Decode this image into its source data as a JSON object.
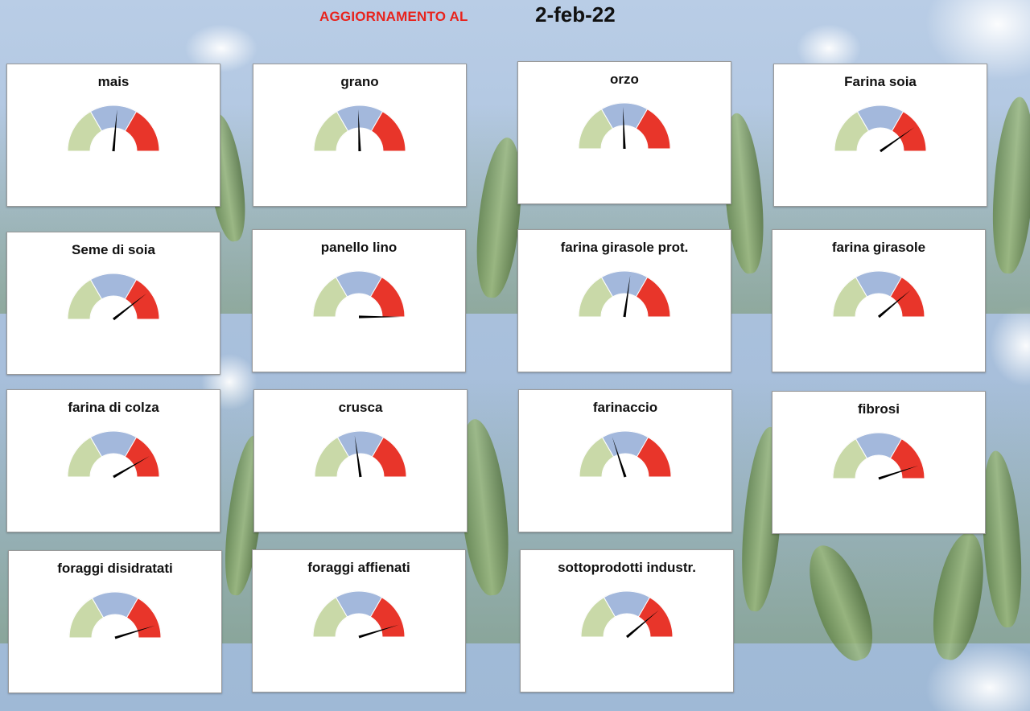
{
  "header": {
    "label": "AGGIORNAMENTO AL",
    "date": "2-feb-22"
  },
  "colors": {
    "header_label": "#e8231d",
    "zone_low": "#c9d9a8",
    "zone_mid": "#a3b8dc",
    "zone_high": "#e8352a",
    "lower_half": "#ffffff",
    "needle": "#000000"
  },
  "chart_data": {
    "type": "gauge",
    "gauge_range": [
      0,
      180
    ],
    "zones": [
      {
        "name": "",
        "from": 0,
        "to": 60,
        "color": "#c9d9a8"
      },
      {
        "name": "",
        "from": 60,
        "to": 120,
        "color": "#a3b8dc"
      },
      {
        "name": "",
        "from": 120,
        "to": 180,
        "color": "#e8352a"
      }
    ],
    "gauges": [
      {
        "title": "mais",
        "value": 95
      },
      {
        "title": "grano",
        "value": 88
      },
      {
        "title": "orzo",
        "value": 88
      },
      {
        "title": "Farina soia",
        "value": 145
      },
      {
        "title": "Seme di soia",
        "value": 142
      },
      {
        "title": "panello lino",
        "value": 180
      },
      {
        "title": "farina girasole prot.",
        "value": 98
      },
      {
        "title": "farina girasole",
        "value": 140
      },
      {
        "title": "farina di colza",
        "value": 150
      },
      {
        "title": "crusca",
        "value": 82
      },
      {
        "title": "farinaccio",
        "value": 72
      },
      {
        "title": "fibrosi",
        "value": 162
      },
      {
        "title": "foraggi disidratati",
        "value": 163
      },
      {
        "title": "foraggi affienati",
        "value": 163
      },
      {
        "title": "sottoprodotti industr.",
        "value": 140
      }
    ]
  }
}
